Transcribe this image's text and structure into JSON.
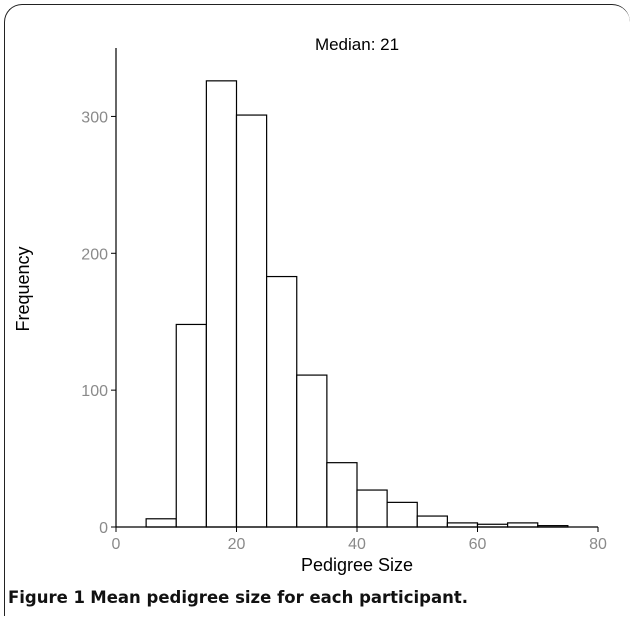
{
  "chart_data": {
    "type": "bar",
    "title": "Median: 21",
    "xlabel": "Pedigree Size",
    "ylabel": "Frequency",
    "xlim": [
      0,
      80
    ],
    "ylim": [
      0,
      350
    ],
    "x_ticks": [
      0,
      20,
      40,
      60,
      80
    ],
    "y_ticks": [
      0,
      100,
      200,
      300
    ],
    "bins": [
      {
        "x0": 5,
        "x1": 10,
        "value": 6
      },
      {
        "x0": 10,
        "x1": 15,
        "value": 148
      },
      {
        "x0": 15,
        "x1": 20,
        "value": 326
      },
      {
        "x0": 20,
        "x1": 25,
        "value": 301
      },
      {
        "x0": 25,
        "x1": 30,
        "value": 183
      },
      {
        "x0": 30,
        "x1": 35,
        "value": 111
      },
      {
        "x0": 35,
        "x1": 40,
        "value": 47
      },
      {
        "x0": 40,
        "x1": 45,
        "value": 27
      },
      {
        "x0": 45,
        "x1": 50,
        "value": 18
      },
      {
        "x0": 50,
        "x1": 55,
        "value": 8
      },
      {
        "x0": 55,
        "x1": 60,
        "value": 3
      },
      {
        "x0": 60,
        "x1": 65,
        "value": 2
      },
      {
        "x0": 65,
        "x1": 70,
        "value": 3
      },
      {
        "x0": 70,
        "x1": 75,
        "value": 1
      }
    ],
    "grid": false,
    "legend": "none"
  },
  "caption": {
    "label": "Figure 1",
    "text": "Mean pedigree size for each participant."
  },
  "colors": {
    "bar_fill": "#ffffff",
    "bar_stroke": "#000000",
    "axis": "#000000",
    "tick_label": "#8a8a8a",
    "axis_label": "#000000"
  }
}
